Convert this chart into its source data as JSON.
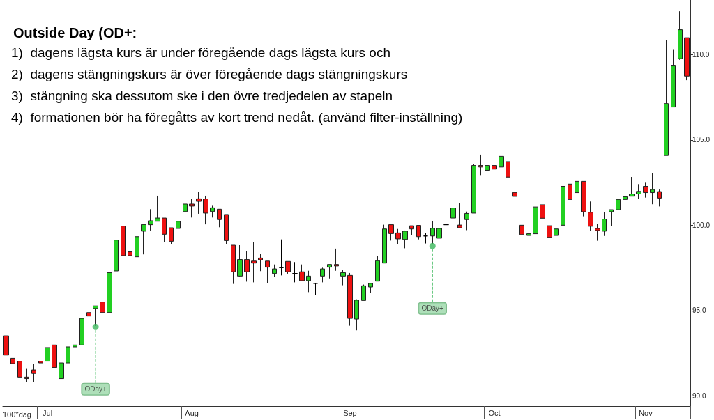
{
  "chart_data": {
    "type": "candlestick",
    "title": "Outside Day (OD+:",
    "annotations": [
      "1)  dagens lägsta kurs är under föregående dags lägsta kurs och",
      "2)  dagens stängningskurs är över föregående dags stängningskurs",
      "3)  stängning ska dessutom ske i den övre tredjedelen av stapeln",
      "4)  formationen bör ha föregåtts av kort trend nedåt. (använd filter-inställning)"
    ],
    "xlabel": "100*dag",
    "categories": [
      null,
      null,
      null,
      null,
      null,
      null,
      "Jul",
      null,
      null,
      null,
      null,
      null,
      null,
      null,
      null,
      null,
      null,
      null,
      null,
      null,
      null,
      null,
      null,
      null,
      null,
      null,
      null,
      "Aug",
      null,
      null,
      null,
      null,
      null,
      null,
      null,
      null,
      null,
      null,
      null,
      null,
      null,
      null,
      null,
      null,
      null,
      null,
      null,
      null,
      null,
      null,
      "Sep",
      null,
      null,
      null,
      null,
      null,
      null,
      null,
      null,
      null,
      null,
      null,
      null,
      null,
      null,
      null,
      null,
      null,
      null,
      null,
      null,
      "Oct",
      null,
      null,
      null,
      null,
      null,
      null,
      null,
      null,
      null,
      null,
      null,
      null,
      null,
      null,
      null,
      null,
      null,
      null,
      null,
      null,
      null,
      "Nov",
      null,
      null,
      null,
      null,
      null,
      null
    ],
    "ohlc": [
      [
        93.52,
        94.07,
        92.23,
        92.39
      ],
      [
        92.2,
        92.71,
        91.62,
        91.89
      ],
      [
        92.03,
        92.5,
        90.84,
        91.1
      ],
      [
        91.1,
        91.58,
        90.79,
        91.01
      ],
      [
        91.52,
        91.89,
        90.8,
        91.31
      ],
      [
        92.03,
        92.03,
        91.03,
        91.93
      ],
      [
        92.03,
        92.83,
        91.31,
        92.83
      ],
      [
        92.98,
        93.59,
        91.28,
        91.66
      ],
      [
        91.01,
        91.93,
        90.84,
        91.93
      ],
      [
        91.93,
        93.43,
        91.76,
        92.87
      ],
      [
        92.87,
        93.18,
        92.34,
        92.98
      ],
      [
        92.98,
        94.88,
        92.98,
        94.54
      ],
      [
        94.88,
        95.2,
        94.14,
        94.68
      ],
      [
        95.12,
        95.27,
        94.1,
        95.27
      ],
      [
        95.5,
        95.9,
        94.75,
        94.88
      ],
      [
        94.88,
        97.22,
        94.88,
        97.22
      ],
      [
        97.32,
        99.13,
        96.23,
        99.13
      ],
      [
        99.95,
        100.05,
        97.29,
        98.22
      ],
      [
        98.44,
        99.06,
        97.84,
        98.22
      ],
      [
        98.15,
        99.78,
        97.97,
        99.33
      ],
      [
        99.65,
        100.04,
        98.29,
        100.04
      ],
      [
        100.03,
        100.94,
        99.69,
        100.26
      ],
      [
        100.23,
        101.73,
        100.23,
        100.42
      ],
      [
        100.42,
        100.42,
        99.03,
        99.47
      ],
      [
        99.85,
        99.85,
        98.9,
        99.06
      ],
      [
        99.81,
        100.5,
        99.48,
        100.23
      ],
      [
        100.8,
        102.54,
        100.45,
        101.24
      ],
      [
        101.24,
        101.55,
        100.45,
        101.12
      ],
      [
        101.55,
        101.96,
        100.67,
        101.4
      ],
      [
        101.54,
        101.73,
        100.05,
        100.71
      ],
      [
        100.8,
        101.14,
        100.45,
        101.02
      ],
      [
        100.94,
        100.94,
        99.88,
        100.33
      ],
      [
        100.63,
        100.63,
        98.9,
        99.1
      ],
      [
        98.83,
        98.83,
        96.56,
        97.27
      ],
      [
        97.02,
        98.83,
        96.97,
        97.99
      ],
      [
        97.99,
        98.49,
        96.69,
        97.27
      ],
      [
        97.9,
        99.01,
        96.65,
        97.78
      ],
      [
        98.08,
        98.31,
        97.31,
        97.97
      ],
      [
        97.9,
        97.9,
        96.61,
        97.54
      ],
      [
        97.17,
        97.7,
        96.99,
        97.44
      ],
      [
        97.51,
        99.17,
        97.06,
        97.51
      ],
      [
        97.88,
        97.88,
        97.16,
        97.27
      ],
      [
        97.17,
        97.84,
        96.65,
        97.17
      ],
      [
        97.27,
        97.7,
        96.75,
        96.75
      ],
      [
        96.75,
        97.33,
        96.08,
        97.02
      ],
      [
        96.59,
        96.59,
        95.91,
        96.59
      ],
      [
        97.02,
        97.51,
        96.65,
        97.44
      ],
      [
        97.54,
        97.7,
        96.88,
        97.7
      ],
      [
        97.7,
        98.63,
        97.33,
        97.61
      ],
      [
        97.02,
        97.4,
        96.48,
        97.22
      ],
      [
        97.06,
        97.2,
        94.11,
        94.54
      ],
      [
        94.5,
        95.66,
        93.84,
        95.61
      ],
      [
        95.59,
        96.52,
        95.59,
        96.45
      ],
      [
        96.38,
        96.59,
        96.04,
        96.59
      ],
      [
        96.72,
        98.19,
        96.72,
        97.92
      ],
      [
        97.78,
        100.03,
        97.78,
        99.78
      ],
      [
        100.03,
        100.03,
        99.1,
        99.51
      ],
      [
        99.55,
        99.78,
        98.9,
        99.2
      ],
      [
        99.17,
        99.69,
        98.65,
        99.65
      ],
      [
        99.97,
        99.97,
        99.44,
        99.78
      ],
      [
        99.99,
        99.99,
        99.17,
        99.33
      ],
      [
        99.37,
        99.55,
        98.93,
        99.37
      ],
      [
        99.37,
        100.26,
        98.9,
        99.82
      ],
      [
        99.24,
        100.12,
        99.13,
        99.81
      ],
      [
        100.03,
        100.33,
        99.48,
        100.03
      ],
      [
        100.42,
        101.41,
        99.82,
        101.01
      ],
      [
        100.01,
        101.32,
        99.85,
        99.85
      ],
      [
        100.33,
        100.8,
        99.71,
        100.69
      ],
      [
        100.71,
        103.59,
        100.71,
        103.5
      ],
      [
        103.5,
        104.14,
        102.94,
        103.41
      ],
      [
        103.22,
        103.73,
        102.64,
        103.5
      ],
      [
        103.5,
        103.59,
        102.78,
        103.29
      ],
      [
        103.41,
        104.14,
        102.94,
        104.04
      ],
      [
        103.73,
        104.37,
        101.76,
        102.82
      ],
      [
        101.92,
        102.54,
        101.35,
        101.69
      ],
      [
        100.0,
        100.2,
        99.06,
        99.45
      ],
      [
        99.4,
        99.62,
        98.79,
        99.5
      ],
      [
        99.5,
        101.39,
        99.34,
        101.07
      ],
      [
        101.2,
        101.31,
        100.13,
        100.41
      ],
      [
        99.97,
        100.05,
        99.21,
        99.29
      ],
      [
        99.4,
        99.89,
        99.21,
        99.78
      ],
      [
        100.0,
        103.59,
        100.0,
        102.28
      ],
      [
        102.41,
        103.51,
        100.63,
        101.51
      ],
      [
        101.91,
        103.28,
        101.73,
        102.57
      ],
      [
        102.57,
        102.57,
        100.52,
        100.79
      ],
      [
        100.76,
        101.39,
        99.69,
        99.94
      ],
      [
        99.81,
        100.09,
        99.09,
        99.69
      ],
      [
        99.65,
        100.76,
        99.37,
        100.36
      ],
      [
        100.79,
        100.91,
        99.97,
        100.91
      ],
      [
        100.91,
        101.51,
        100.83,
        101.51
      ],
      [
        101.51,
        101.98,
        101.35,
        101.67
      ],
      [
        101.7,
        102.83,
        101.7,
        101.83
      ],
      [
        101.83,
        102.41,
        101.54,
        101.98
      ],
      [
        102.28,
        102.49,
        101.62,
        101.91
      ],
      [
        101.91,
        103.04,
        101.23,
        102.09
      ],
      [
        101.97,
        102.09,
        101.1,
        101.59
      ],
      [
        104.09,
        110.87,
        104.09,
        107.13
      ],
      [
        106.93,
        110.28,
        106.93,
        109.34
      ],
      [
        109.76,
        112.54,
        109.7,
        111.46
      ],
      [
        110.99,
        110.99,
        108.5,
        108.74
      ]
    ],
    "colors": [
      "#ee1111",
      "#ee1111",
      "#ee1111",
      "#ee1111",
      "#ee1111",
      "#ee1111",
      "#22d022",
      "#ee1111",
      "#22d022",
      "#22d022",
      "#22d022",
      "#22d022",
      "#ee1111",
      "#22d022",
      "#ee1111",
      "#22d022",
      "#22d022",
      "#ee1111",
      "#ee1111",
      "#22d022",
      "#22d022",
      "#22d022",
      "#22d022",
      "#ee1111",
      "#ee1111",
      "#22d022",
      "#22d022",
      "#ee1111",
      "#ee1111",
      "#ee1111",
      "#22d022",
      "#ee1111",
      "#ee1111",
      "#ee1111",
      "#22d022",
      "#ee1111",
      "#ee1111",
      "#ee1111",
      "#ee1111",
      "#22d022",
      "#000000",
      "#ee1111",
      "#000000",
      "#ee1111",
      "#22d022",
      "#000000",
      "#22d022",
      "#22d022",
      "#ee1111",
      "#22d022",
      "#ee1111",
      "#22d022",
      "#22d022",
      "#22d022",
      "#22d022",
      "#22d022",
      "#ee1111",
      "#ee1111",
      "#22d022",
      "#ee1111",
      "#ee1111",
      "#000000",
      "#22d022",
      "#22d022",
      "#000000",
      "#22d022",
      "#ee1111",
      "#22d022",
      "#22d022",
      "#ee1111",
      "#22d022",
      "#ee1111",
      "#22d022",
      "#ee1111",
      "#ee1111",
      "#ee1111",
      "#22d022",
      "#22d022",
      "#ee1111",
      "#ee1111",
      "#22d022",
      "#22d022",
      "#ee1111",
      "#22d022",
      "#ee1111",
      "#ee1111",
      "#ee1111",
      "#22d022",
      "#22d022",
      "#22d022",
      "#22d022",
      "#22d022",
      "#22d022",
      "#ee1111",
      "#22d022",
      "#ee1111",
      "#22d022",
      "#22d022",
      "#22d022",
      "#ee1111"
    ],
    "series": [
      {
        "type": "scatter",
        "color": "#3cb85c",
        "values": [
          null,
          null,
          null,
          null,
          null,
          null,
          null,
          null,
          null,
          null,
          null,
          null,
          null,
          94.04,
          null,
          null,
          null,
          null,
          null,
          null,
          null,
          null,
          null,
          null,
          null,
          null,
          null,
          null,
          null,
          null,
          null,
          null,
          null,
          null,
          null,
          null,
          null,
          null,
          null,
          null,
          null,
          null,
          null,
          null,
          null,
          null,
          null,
          null,
          null,
          null,
          null,
          null,
          null,
          null,
          null,
          null,
          null,
          null,
          null,
          null,
          null,
          null,
          98.78,
          null,
          null,
          null,
          null,
          null,
          null,
          null,
          null,
          null,
          null,
          null,
          null,
          null,
          null,
          null,
          null,
          null,
          null,
          null,
          null,
          null,
          null,
          null,
          null,
          null,
          null,
          null,
          null,
          null,
          null,
          null,
          null,
          null,
          null,
          null,
          null,
          null
        ],
        "value_labels": [
          null,
          null,
          null,
          null,
          null,
          null,
          null,
          null,
          null,
          null,
          null,
          null,
          null,
          "ODay+",
          null,
          null,
          null,
          null,
          null,
          null,
          null,
          null,
          null,
          null,
          null,
          null,
          null,
          null,
          null,
          null,
          null,
          null,
          null,
          null,
          null,
          null,
          null,
          null,
          null,
          null,
          null,
          null,
          null,
          null,
          null,
          null,
          null,
          null,
          null,
          null,
          null,
          null,
          null,
          null,
          null,
          null,
          null,
          null,
          null,
          null,
          null,
          null,
          "ODay+",
          null,
          null,
          null,
          null,
          null,
          null,
          null,
          null,
          null,
          null,
          null,
          null,
          null,
          null,
          null,
          null,
          null,
          null,
          null,
          null,
          null,
          null,
          null,
          null,
          null,
          null,
          null,
          null,
          null,
          null,
          null,
          null,
          null,
          null,
          null,
          null,
          null
        ]
      }
    ],
    "ylim": [
      89.4,
      113.2
    ],
    "yticks": [
      {
        "value": 90,
        "label": "90.0"
      },
      {
        "value": 95,
        "label": "95.0"
      },
      {
        "value": 100,
        "label": "100.0"
      },
      {
        "value": 105,
        "label": "105.0"
      },
      {
        "value": 110,
        "label": "110.0"
      }
    ]
  }
}
